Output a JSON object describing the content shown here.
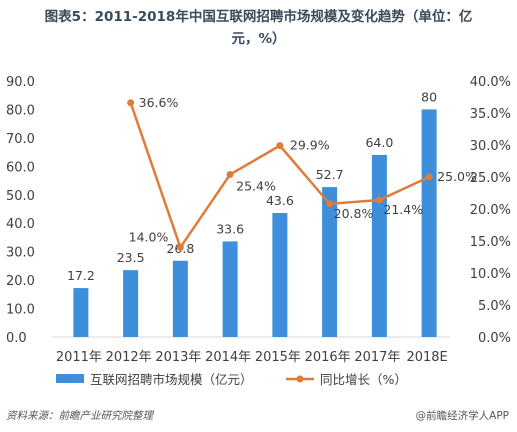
{
  "title_line1": "图表5：2011-2018年中国互联网招聘市场规模及变化趋势（单位：亿",
  "title_line2": "元，%）",
  "footer": {
    "source": "资料来源：前瞻产业研究院整理",
    "brand": "@前瞻经济学人APP"
  },
  "colors": {
    "bar": "#3d8fdc",
    "line": "#e07b39",
    "axis_text": "#404040"
  },
  "chart_data": {
    "type": "bar",
    "categories": [
      "2011年",
      "2012年",
      "2013年",
      "2014年",
      "2015年",
      "2016年",
      "2017年",
      "2018E"
    ],
    "series": [
      {
        "name": "互联网招聘市场规模（亿元）",
        "type": "bar",
        "axis": "left",
        "values": [
          17.2,
          23.5,
          26.8,
          33.6,
          43.6,
          52.7,
          64.0,
          80
        ],
        "labels": [
          "17.2",
          "23.5",
          "26.8",
          "33.6",
          "43.6",
          "52.7",
          "64.0",
          "80"
        ]
      },
      {
        "name": "同比增长（%）",
        "type": "line",
        "axis": "right",
        "values": [
          null,
          36.6,
          14.0,
          25.4,
          29.9,
          20.8,
          21.4,
          25.0
        ],
        "labels": [
          null,
          "36.6%",
          "14.0%",
          "25.4%",
          "29.9%",
          "20.8%",
          "21.4%",
          "25.0%"
        ]
      }
    ],
    "left_axis": {
      "ylim": [
        0,
        90
      ],
      "ticks": [
        "0.0",
        "10.0",
        "20.0",
        "30.0",
        "40.0",
        "50.0",
        "60.0",
        "70.0",
        "80.0",
        "90.0"
      ]
    },
    "right_axis": {
      "ylim": [
        0,
        40
      ],
      "ticks": [
        "0.0%",
        "5.0%",
        "10.0%",
        "15.0%",
        "20.0%",
        "25.0%",
        "30.0%",
        "35.0%",
        "40.0%"
      ]
    },
    "legend_position": "bottom"
  }
}
